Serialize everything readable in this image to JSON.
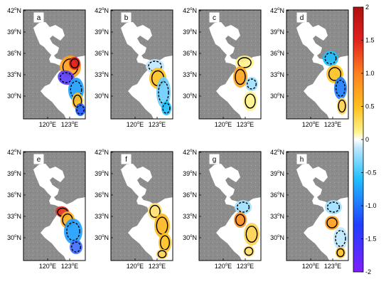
{
  "axes": {
    "lat_ticks": [
      "42",
      "39",
      "36",
      "33",
      "30"
    ],
    "lon_ticks": [
      "120",
      "123"
    ],
    "lat_suffix": "N",
    "lon_suffix": "E",
    "degree_symbol": "o"
  },
  "panels": [
    {
      "label": "a"
    },
    {
      "label": "b"
    },
    {
      "label": "c"
    },
    {
      "label": "d"
    },
    {
      "label": "e"
    },
    {
      "label": "f"
    },
    {
      "label": "g"
    },
    {
      "label": "h"
    }
  ],
  "colorbar": {
    "ticks": [
      "2",
      "1.5",
      "1.0",
      "0.5",
      "0",
      "-0.5",
      "-1.0",
      "-1.5",
      "-2"
    ],
    "range": [
      -2,
      2
    ],
    "colors": [
      "#7f1fff",
      "#1f3fff",
      "#1fbfff",
      "#bfe8ff",
      "#ffffff",
      "#fff28a",
      "#ffc21f",
      "#ff7f1f",
      "#e01f1f",
      "#b01010"
    ]
  },
  "colors": {
    "land": "#8c8c8c",
    "sea": "#ffffff",
    "contour": "#000000",
    "frame": "#000000"
  }
}
